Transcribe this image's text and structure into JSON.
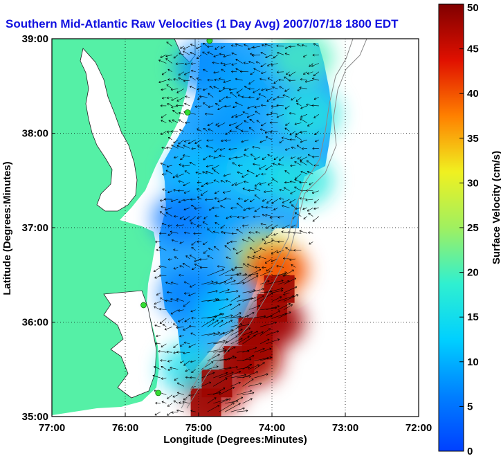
{
  "chart_data": {
    "type": "heatmap",
    "title": "Southern Mid-Atlantic Raw Velocities (1 Day Avg) 2007/07/18 1800 EDT",
    "xlabel": "Longitude (Degrees:Minutes)",
    "ylabel": "Latitude (Degrees:Minutes)",
    "xlim": [
      -77,
      -72
    ],
    "ylim": [
      35,
      39
    ],
    "xticks": [
      -77,
      -76,
      -75,
      -74,
      -73,
      -72
    ],
    "xtick_labels": [
      "77:00",
      "76:00",
      "75:00",
      "74:00",
      "73:00",
      "72:00"
    ],
    "yticks": [
      35,
      36,
      37,
      38,
      39
    ],
    "ytick_labels": [
      "35:00",
      "36:00",
      "37:00",
      "38:00",
      "39:00"
    ],
    "grid": true,
    "colorbar": {
      "label": "Surface Velocity (cm/s)",
      "min": 0,
      "max": 50,
      "ticks": [
        0,
        5,
        10,
        15,
        20,
        25,
        30,
        35,
        40,
        45,
        50
      ],
      "colormap": "jet"
    },
    "colors": {
      "land": "#55f0a6",
      "water": "#ffffff",
      "title": "#1010e0",
      "station": "#33dd33"
    },
    "velocity_samples": [
      {
        "lon": -74.9,
        "lat": 38.7,
        "speed": 7
      },
      {
        "lon": -74.4,
        "lat": 38.5,
        "speed": 9
      },
      {
        "lon": -73.6,
        "lat": 38.8,
        "speed": 20
      },
      {
        "lon": -73.5,
        "lat": 38.2,
        "speed": 17
      },
      {
        "lon": -74.6,
        "lat": 38.0,
        "speed": 8
      },
      {
        "lon": -75.0,
        "lat": 37.6,
        "speed": 11
      },
      {
        "lon": -74.2,
        "lat": 37.6,
        "speed": 14
      },
      {
        "lon": -73.6,
        "lat": 37.5,
        "speed": 17
      },
      {
        "lon": -75.2,
        "lat": 37.1,
        "speed": 5
      },
      {
        "lon": -74.5,
        "lat": 37.0,
        "speed": 9
      },
      {
        "lon": -74.1,
        "lat": 36.7,
        "speed": 28
      },
      {
        "lon": -73.95,
        "lat": 36.55,
        "speed": 40
      },
      {
        "lon": -75.1,
        "lat": 36.3,
        "speed": 6
      },
      {
        "lon": -74.6,
        "lat": 36.1,
        "speed": 12
      },
      {
        "lon": -74.0,
        "lat": 36.0,
        "speed": 48
      },
      {
        "lon": -74.3,
        "lat": 35.6,
        "speed": 47
      },
      {
        "lon": -74.8,
        "lat": 35.3,
        "speed": 46
      },
      {
        "lon": -75.1,
        "lat": 35.5,
        "speed": 15
      }
    ],
    "stations": [
      {
        "lon": -74.85,
        "lat": 38.98
      },
      {
        "lon": -75.15,
        "lat": 38.22
      },
      {
        "lon": -75.75,
        "lat": 36.18
      },
      {
        "lon": -75.55,
        "lat": 35.25
      }
    ]
  }
}
